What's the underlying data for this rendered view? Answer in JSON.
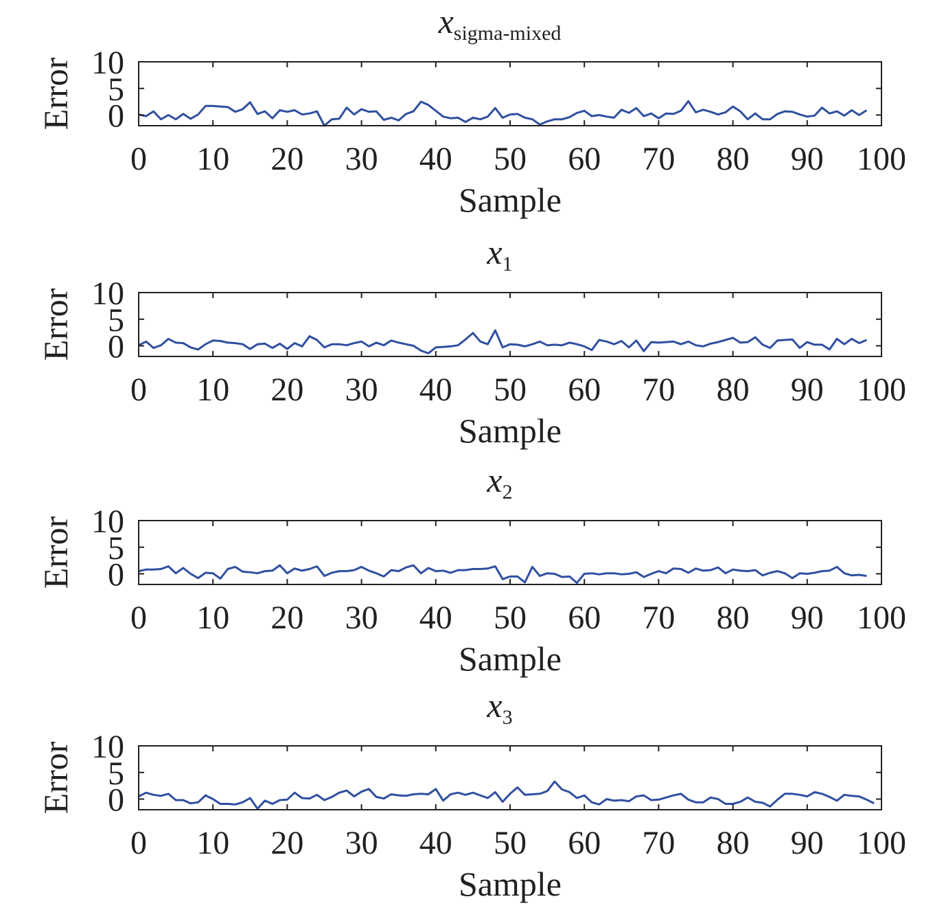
{
  "colors": {
    "line": "#2f4f9f",
    "axis": "#231f20",
    "background": "#ffffff"
  },
  "chart_data": [
    {
      "type": "line",
      "title": "x",
      "title_subscript": "sigma-mixed",
      "xlabel": "Sample",
      "ylabel": "Error",
      "xlim": [
        0,
        100
      ],
      "ylim": [
        -2,
        10
      ],
      "xticks": [
        "0",
        "10",
        "20",
        "30",
        "40",
        "50",
        "60",
        "70",
        "80",
        "90",
        "100"
      ],
      "yticks": [
        "0",
        "5",
        "10"
      ],
      "grid": false,
      "series": [
        {
          "values": [
            0.1,
            -0.2,
            0.7,
            -0.8,
            0,
            -0.8,
            0.2,
            -0.7,
            0.1,
            1.7,
            1.7,
            1.6,
            1.5,
            0.6,
            1.1,
            2.4,
            0.2,
            0.7,
            -0.6,
            0.9,
            0.6,
            0.9,
            0.1,
            0.3,
            0.7,
            -2.0,
            -0.8,
            -0.7,
            1.4,
            0.1,
            1.1,
            0.6,
            0.7,
            -0.9,
            -0.5,
            -1.0,
            0.2,
            0.7,
            2.5,
            1.9,
            0.8,
            -0.3,
            -0.6,
            -0.5,
            -1.3,
            -0.5,
            -0.8,
            -0.3,
            1.3,
            -0.5,
            0.1,
            0.2,
            -0.5,
            -0.8,
            -1.8,
            -1.2,
            -0.8,
            -0.8,
            -0.4,
            0.4,
            0.8,
            -0.2,
            0,
            -0.3,
            -0.5,
            1.0,
            0.4,
            1.3,
            -0.2,
            0.3,
            -0.6,
            0.3,
            0.2,
            0.8,
            2.6,
            0.5,
            1.0,
            0.6,
            0.1,
            0.5,
            1.6,
            0.7,
            -0.8,
            0.3,
            -0.8,
            -0.8,
            0.2,
            0.7,
            0.6,
            0.1,
            -0.3,
            -0.1,
            1.4,
            0.3,
            0.7,
            -0.1,
            0.9,
            0,
            0.9
          ]
        }
      ]
    },
    {
      "type": "line",
      "title": "x",
      "title_subscript": "1",
      "xlabel": "Sample",
      "ylabel": "Error",
      "xlim": [
        0,
        100
      ],
      "ylim": [
        -2,
        10
      ],
      "xticks": [
        "0",
        "10",
        "20",
        "30",
        "40",
        "50",
        "60",
        "70",
        "80",
        "90",
        "100"
      ],
      "yticks": [
        "0",
        "5",
        "10"
      ],
      "grid": false,
      "series": [
        {
          "values": [
            0.1,
            0.8,
            -0.4,
            0.1,
            1.3,
            0.6,
            0.5,
            -0.3,
            -0.7,
            0.3,
            1.0,
            0.9,
            0.6,
            0.5,
            0.3,
            -0.6,
            0.3,
            0.4,
            -0.4,
            0.4,
            -0.6,
            0.5,
            -0.1,
            1.8,
            1.1,
            -0.3,
            0.3,
            0.3,
            0.1,
            0.5,
            0.8,
            -0.1,
            0.6,
            0.1,
            1.0,
            0.6,
            0.3,
            0,
            -0.9,
            -1.4,
            -0.3,
            -0.2,
            -0.1,
            0.1,
            1.2,
            2.4,
            0.8,
            0.3,
            2.9,
            -0.3,
            0.3,
            0.2,
            -0.1,
            0.3,
            0.8,
            0.1,
            0.2,
            0.1,
            0.6,
            0.3,
            -0.1,
            -0.8,
            1.1,
            0.8,
            0.3,
            0.9,
            -0.3,
            1.0,
            -1.0,
            0.7,
            0.6,
            0.7,
            0.8,
            0.3,
            0.8,
            0.1,
            -0.1,
            0.4,
            0.7,
            1.1,
            1.5,
            0.6,
            0.7,
            1.6,
            0.2,
            -0.4,
            1.0,
            1.1,
            1.2,
            -0.4,
            0.7,
            0.2,
            0.2,
            -0.7,
            1.3,
            0.3,
            1.3,
            0.5,
            1.1
          ]
        }
      ]
    },
    {
      "type": "line",
      "title": "x",
      "title_subscript": "2",
      "xlabel": "Sample",
      "ylabel": "Error",
      "xlim": [
        0,
        100
      ],
      "ylim": [
        -2,
        10
      ],
      "xticks": [
        "0",
        "10",
        "20",
        "30",
        "40",
        "50",
        "60",
        "70",
        "80",
        "90",
        "100"
      ],
      "yticks": [
        "0",
        "5",
        "10"
      ],
      "grid": false,
      "series": [
        {
          "values": [
            0.5,
            0.8,
            0.8,
            0.9,
            1.4,
            0.1,
            1.1,
            0,
            -0.8,
            0.2,
            0.1,
            -0.9,
            0.9,
            1.3,
            0.4,
            0.3,
            0.1,
            0.5,
            0.6,
            1.6,
            0.1,
            1.0,
            0.6,
            0.9,
            1.4,
            -0.4,
            0.2,
            0.5,
            0.5,
            0.7,
            1.3,
            0.6,
            0.1,
            -0.5,
            0.7,
            0.5,
            1.2,
            1.6,
            0.1,
            1.1,
            0.5,
            0.6,
            0.2,
            0.7,
            0.7,
            0.9,
            0.9,
            1.0,
            1.4,
            -1.0,
            -0.5,
            -0.5,
            -1.6,
            1.3,
            -0.4,
            0.1,
            0,
            -0.6,
            -0.5,
            -1.7,
            0,
            0.1,
            -0.1,
            0.1,
            0.1,
            -0.1,
            0,
            0.3,
            -0.6,
            0,
            0.5,
            0.1,
            1.0,
            0.9,
            0.2,
            1.0,
            0.6,
            0.7,
            1.2,
            0.1,
            0.8,
            0.6,
            0.5,
            0.7,
            -0.3,
            0.2,
            0.5,
            0.1,
            -0.8,
            0.1,
            0,
            0.2,
            0.5,
            0.6,
            1.3,
            0.1,
            -0.3,
            -0.2,
            -0.4
          ]
        }
      ]
    },
    {
      "type": "line",
      "title": "x",
      "title_subscript": "3",
      "xlabel": "Sample",
      "ylabel": "Error",
      "xlim": [
        0,
        100
      ],
      "ylim": [
        -2,
        10
      ],
      "xticks": [
        "0",
        "10",
        "20",
        "30",
        "40",
        "50",
        "60",
        "70",
        "80",
        "90",
        "100"
      ],
      "yticks": [
        "0",
        "5",
        "10"
      ],
      "grid": false,
      "series": [
        {
          "values": [
            0.5,
            1.2,
            0.8,
            0.6,
            1.0,
            -0.2,
            -0.2,
            -0.8,
            -0.6,
            0.7,
            0,
            -0.9,
            -0.9,
            -1.0,
            -0.6,
            0.2,
            -1.8,
            -0.3,
            -0.9,
            -0.2,
            -0.1,
            1.2,
            0.2,
            0.1,
            0.8,
            -0.2,
            0.4,
            1.2,
            1.6,
            0.5,
            1.4,
            1.9,
            0.4,
            0.1,
            0.9,
            0.7,
            0.6,
            0.9,
            1.0,
            0.9,
            1.9,
            -0.3,
            0.9,
            1.2,
            0.8,
            1.2,
            0.7,
            0.2,
            1.3,
            -0.5,
            1.0,
            2.2,
            0.8,
            0.9,
            1.0,
            1.5,
            3.3,
            1.8,
            1.3,
            0.2,
            0.7,
            -0.6,
            -1.0,
            0,
            -0.3,
            -0.2,
            -0.4,
            0.5,
            0.7,
            -0.2,
            -0.1,
            0.3,
            0.7,
            1.0,
            -0.1,
            -0.6,
            -0.6,
            0.3,
            0,
            -0.9,
            -0.9,
            -0.5,
            0.3,
            -0.5,
            -0.7,
            -1.4,
            -0.1,
            1.0,
            1.0,
            0.8,
            0.5,
            1.3,
            1.0,
            0.4,
            -0.3,
            0.8,
            0.6,
            0.5,
            -0.1,
            -0.8
          ]
        }
      ]
    }
  ]
}
